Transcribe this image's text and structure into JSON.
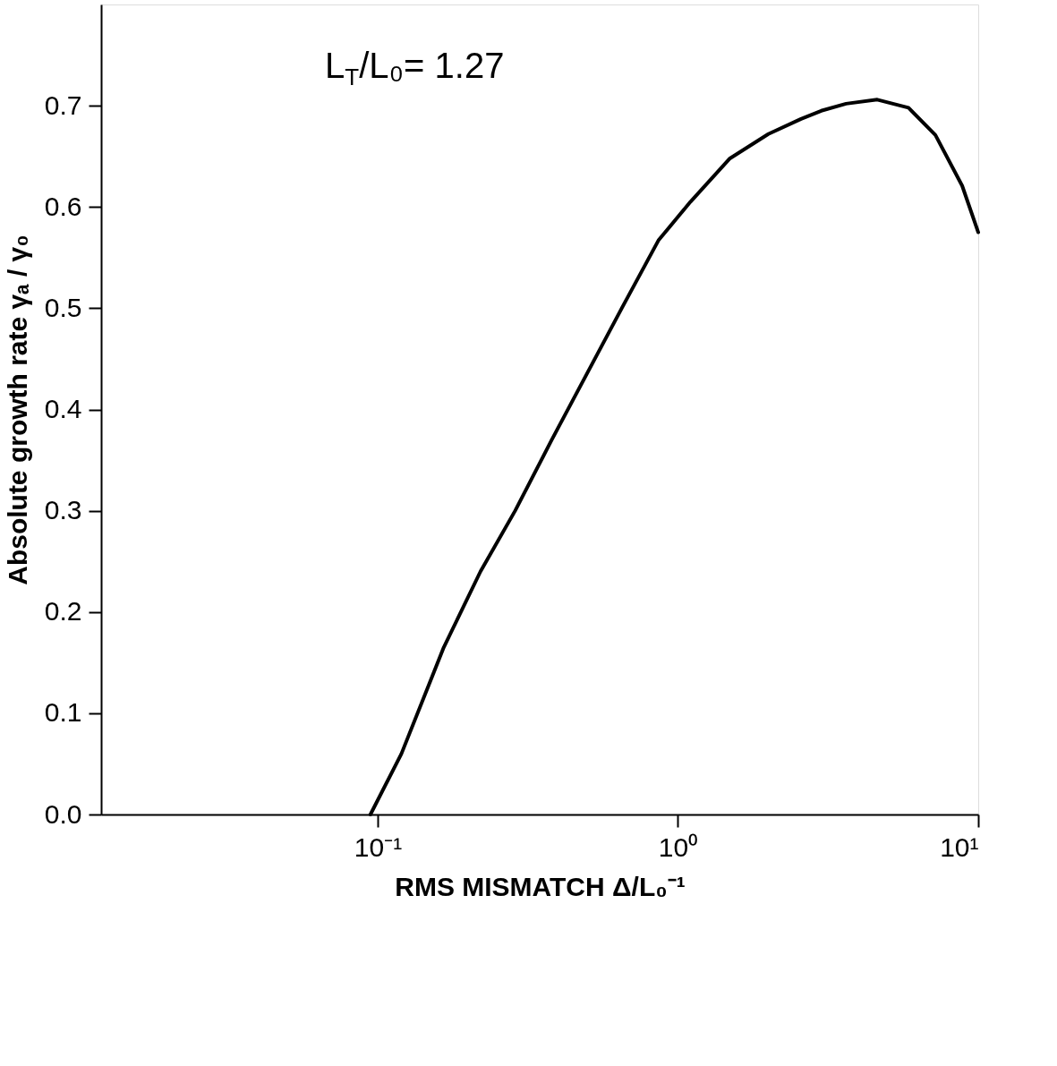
{
  "chart_data": {
    "type": "line",
    "xlabel": "RMS  MISMATCH Δ/L₀⁻¹",
    "ylabel": "Absolute growth rate  γₐ / γ₀",
    "annotations": [
      "L$_{T}$/L₀= 1.27"
    ],
    "log": "x",
    "grid": false,
    "legend": false,
    "marker": "none",
    "line_style": "solid",
    "xlim": [
      0.012,
      10
    ],
    "ylim": [
      0,
      0.8
    ],
    "xticks": [
      {
        "value": 0.1,
        "label": "10⁻¹"
      },
      {
        "value": 1,
        "label": "10⁰"
      },
      {
        "value": 10,
        "label": "10¹"
      }
    ],
    "yticks": [
      {
        "value": 0,
        "label": "0.0"
      },
      {
        "value": 0.1,
        "label": "0.1"
      },
      {
        "value": 0.2,
        "label": "0.2"
      },
      {
        "value": 0.3,
        "label": "0.3"
      },
      {
        "value": 0.4,
        "label": "0.4"
      },
      {
        "value": 0.5,
        "label": "0.5"
      },
      {
        "value": 0.6,
        "label": "0.6"
      },
      {
        "value": 0.7,
        "label": "0.7"
      }
    ],
    "series": [
      {
        "color": "#000000",
        "x": [
          0.0946,
          0.12,
          0.166,
          0.22,
          0.287,
          0.38,
          0.497,
          0.65,
          0.861,
          1.1,
          1.49,
          2.0,
          2.57,
          3.0,
          3.63,
          4.61,
          5.86,
          7.2,
          8.84,
          10
        ],
        "values": [
          0,
          0.06,
          0.165,
          0.24,
          0.3,
          0.37,
          0.435,
          0.5,
          0.567,
          0.605,
          0.648,
          0.672,
          0.687,
          0.695,
          0.702,
          0.706,
          0.698,
          0.671,
          0.621,
          0.575
        ]
      }
    ]
  }
}
